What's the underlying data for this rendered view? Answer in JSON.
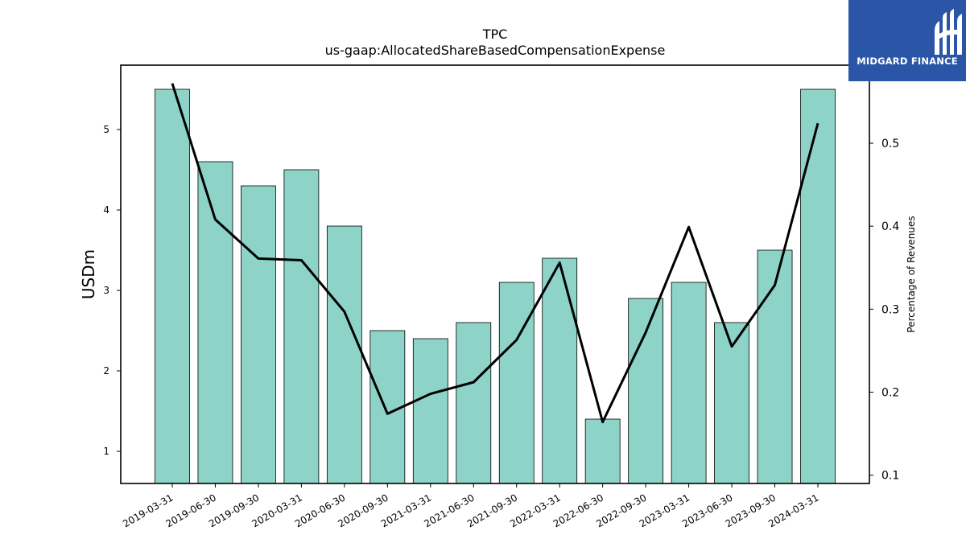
{
  "brand": {
    "name": "MIDGARD FINANCE",
    "color": "#2b56a8"
  },
  "chart_data": {
    "type": "bar",
    "title": "TPC",
    "subtitle": "us-gaap:AllocatedShareBasedCompensationExpense",
    "categories": [
      "2019-03-31",
      "2019-06-30",
      "2019-09-30",
      "2020-03-31",
      "2020-06-30",
      "2020-09-30",
      "2021-03-31",
      "2021-06-30",
      "2021-09-30",
      "2022-03-31",
      "2022-06-30",
      "2022-09-30",
      "2023-03-31",
      "2023-06-30",
      "2023-09-30",
      "2024-03-31"
    ],
    "series": [
      {
        "type": "bar",
        "axis": "left",
        "color": "#8dd3c7",
        "values": [
          5.5,
          4.6,
          4.3,
          4.5,
          3.8,
          2.5,
          2.4,
          2.6,
          3.1,
          3.4,
          1.4,
          2.9,
          3.1,
          2.6,
          3.5,
          5.5
        ]
      },
      {
        "type": "line",
        "axis": "right",
        "color": "#000000",
        "values": [
          0.572,
          0.408,
          0.361,
          0.359,
          0.297,
          0.174,
          0.198,
          0.212,
          0.263,
          0.356,
          0.164,
          0.272,
          0.399,
          0.255,
          0.329,
          0.524
        ]
      }
    ],
    "ylabel": "USDm",
    "ylabel_right": "Percentage of Revenues",
    "ylim": [
      0.6,
      5.8
    ],
    "ylim_right": [
      0.09,
      0.594
    ],
    "yticks": [
      1,
      2,
      3,
      4,
      5
    ],
    "yticks_right": [
      0.1,
      0.2,
      0.3,
      0.4,
      0.5
    ],
    "grid": false,
    "legend": "none"
  }
}
